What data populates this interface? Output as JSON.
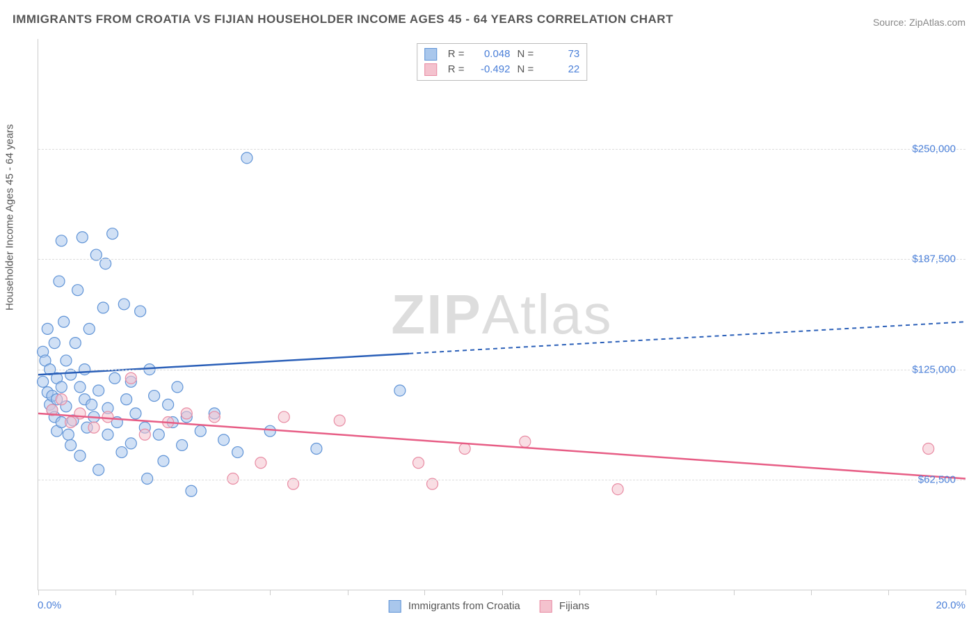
{
  "title": "IMMIGRANTS FROM CROATIA VS FIJIAN HOUSEHOLDER INCOME AGES 45 - 64 YEARS CORRELATION CHART",
  "source": "Source: ZipAtlas.com",
  "watermark_a": "ZIP",
  "watermark_b": "Atlas",
  "chart": {
    "type": "scatter",
    "ylabel": "Householder Income Ages 45 - 64 years",
    "xlim": [
      0.0,
      20.0
    ],
    "ylim": [
      0,
      312500
    ],
    "x_min_label": "0.0%",
    "x_max_label": "20.0%",
    "x_tick_positions": [
      0.0,
      1.67,
      3.33,
      5.0,
      6.67,
      8.33,
      10.0,
      11.67,
      13.33,
      15.0,
      16.67,
      18.33,
      20.0
    ],
    "y_gridlines": [
      62500,
      125000,
      187500,
      250000
    ],
    "y_tick_labels": [
      "$62,500",
      "$125,000",
      "$187,500",
      "$250,000"
    ],
    "background_color": "#ffffff",
    "grid_color": "#dddddd",
    "axis_color": "#cccccc",
    "tick_label_color": "#4a7fd8",
    "marker_radius": 8,
    "marker_opacity": 0.55,
    "series": [
      {
        "name": "Immigrants from Croatia",
        "fill_color": "#a9c7ec",
        "stroke_color": "#5f93d6",
        "trend_color": "#2a5fb8",
        "trend": {
          "y_at_xmin": 122000,
          "y_at_xmax": 152000,
          "solid_until_x": 8.0
        },
        "stats": {
          "R": "0.048",
          "N": "73"
        },
        "points": [
          [
            0.1,
            135000
          ],
          [
            0.1,
            118000
          ],
          [
            0.15,
            130000
          ],
          [
            0.2,
            148000
          ],
          [
            0.2,
            112000
          ],
          [
            0.25,
            105000
          ],
          [
            0.25,
            125000
          ],
          [
            0.3,
            110000
          ],
          [
            0.3,
            102000
          ],
          [
            0.35,
            98000
          ],
          [
            0.35,
            140000
          ],
          [
            0.4,
            120000
          ],
          [
            0.4,
            108000
          ],
          [
            0.4,
            90000
          ],
          [
            0.45,
            175000
          ],
          [
            0.5,
            198000
          ],
          [
            0.5,
            115000
          ],
          [
            0.5,
            95000
          ],
          [
            0.55,
            152000
          ],
          [
            0.6,
            104000
          ],
          [
            0.6,
            130000
          ],
          [
            0.65,
            88000
          ],
          [
            0.7,
            122000
          ],
          [
            0.7,
            82000
          ],
          [
            0.75,
            96000
          ],
          [
            0.8,
            140000
          ],
          [
            0.85,
            170000
          ],
          [
            0.9,
            115000
          ],
          [
            0.9,
            76000
          ],
          [
            0.95,
            200000
          ],
          [
            1.0,
            108000
          ],
          [
            1.0,
            125000
          ],
          [
            1.05,
            92000
          ],
          [
            1.1,
            148000
          ],
          [
            1.15,
            105000
          ],
          [
            1.2,
            98000
          ],
          [
            1.25,
            190000
          ],
          [
            1.3,
            113000
          ],
          [
            1.3,
            68000
          ],
          [
            1.4,
            160000
          ],
          [
            1.45,
            185000
          ],
          [
            1.5,
            103000
          ],
          [
            1.5,
            88000
          ],
          [
            1.6,
            202000
          ],
          [
            1.65,
            120000
          ],
          [
            1.7,
            95000
          ],
          [
            1.8,
            78000
          ],
          [
            1.85,
            162000
          ],
          [
            1.9,
            108000
          ],
          [
            2.0,
            118000
          ],
          [
            2.0,
            83000
          ],
          [
            2.1,
            100000
          ],
          [
            2.2,
            158000
          ],
          [
            2.3,
            92000
          ],
          [
            2.35,
            63000
          ],
          [
            2.4,
            125000
          ],
          [
            2.5,
            110000
          ],
          [
            2.6,
            88000
          ],
          [
            2.7,
            73000
          ],
          [
            2.8,
            105000
          ],
          [
            2.9,
            95000
          ],
          [
            3.0,
            115000
          ],
          [
            3.1,
            82000
          ],
          [
            3.2,
            98000
          ],
          [
            3.3,
            56000
          ],
          [
            3.5,
            90000
          ],
          [
            3.8,
            100000
          ],
          [
            4.0,
            85000
          ],
          [
            4.3,
            78000
          ],
          [
            4.5,
            245000
          ],
          [
            5.0,
            90000
          ],
          [
            6.0,
            80000
          ],
          [
            7.8,
            113000
          ]
        ]
      },
      {
        "name": "Fijians",
        "fill_color": "#f4c2ce",
        "stroke_color": "#e88ba3",
        "trend_color": "#e75d85",
        "trend": {
          "y_at_xmin": 100000,
          "y_at_xmax": 63000,
          "solid_until_x": 20.0
        },
        "stats": {
          "R": "-0.492",
          "N": "22"
        },
        "points": [
          [
            0.3,
            102000
          ],
          [
            0.5,
            108000
          ],
          [
            0.7,
            95000
          ],
          [
            0.9,
            100000
          ],
          [
            1.2,
            92000
          ],
          [
            1.5,
            98000
          ],
          [
            2.0,
            120000
          ],
          [
            2.3,
            88000
          ],
          [
            2.8,
            95000
          ],
          [
            3.2,
            100000
          ],
          [
            3.8,
            98000
          ],
          [
            4.2,
            63000
          ],
          [
            4.8,
            72000
          ],
          [
            5.3,
            98000
          ],
          [
            5.5,
            60000
          ],
          [
            6.5,
            96000
          ],
          [
            8.2,
            72000
          ],
          [
            8.5,
            60000
          ],
          [
            9.2,
            80000
          ],
          [
            10.5,
            84000
          ],
          [
            12.5,
            57000
          ],
          [
            19.2,
            80000
          ]
        ]
      }
    ],
    "legend": {
      "series1_label": "Immigrants from Croatia",
      "series2_label": "Fijians",
      "R_label": "R =",
      "N_label": "N ="
    }
  }
}
